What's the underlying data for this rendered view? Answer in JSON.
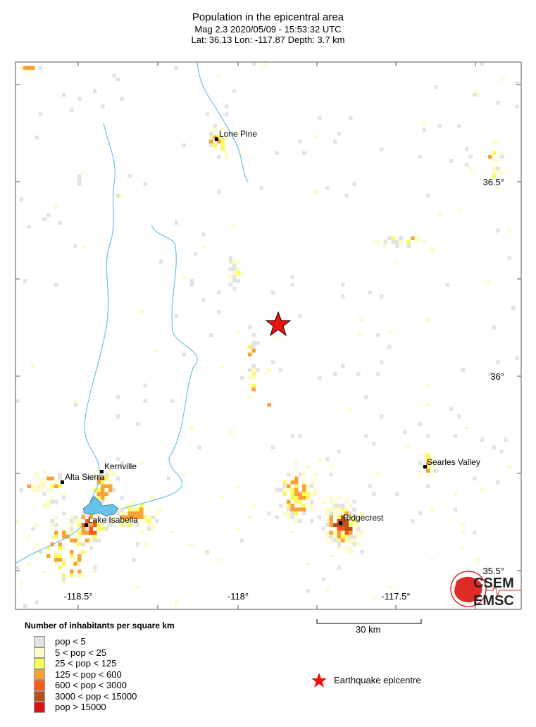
{
  "header": {
    "title": "Population in the epicentral area",
    "line2": "Mag 2.3  2020/05/09 - 15:53:32 UTC",
    "line3": "Lat: 36.13    Lon: -117.87      Depth:  3.7 km"
  },
  "event": {
    "magnitude": 2.3,
    "lat": 36.13,
    "lon": -117.87,
    "depth_km": 3.7
  },
  "axes": {
    "lat_labels": [
      "36.5°",
      "36°",
      "35.5°"
    ],
    "lon_labels": [
      "-118.5°",
      "-118°",
      "-117.5°"
    ]
  },
  "places": [
    {
      "name": "Lone Pine",
      "lat": 36.61,
      "lon": -118.07
    },
    {
      "name": "Kernville",
      "lat": 35.76,
      "lon": -118.43
    },
    {
      "name": "Alta Sierra",
      "lat": 35.73,
      "lon": -118.55
    },
    {
      "name": "Lake Isabella",
      "lat": 35.62,
      "lon": -118.47
    },
    {
      "name": "Ridgecrest",
      "lat": 35.62,
      "lon": -117.67
    },
    {
      "name": "Searles Valley",
      "lat": 35.77,
      "lon": -117.4
    }
  ],
  "scale_bar": {
    "label": "30 km"
  },
  "legend": {
    "title": "Number of inhabitants per square km",
    "classes": [
      {
        "label": "pop < 5",
        "color": "#e3e3e0"
      },
      {
        "label": "5 < pop < 25",
        "color": "#fdfbc8"
      },
      {
        "label": "25 < pop < 125",
        "color": "#fafa5a"
      },
      {
        "label": "125 < pop < 600",
        "color": "#f9a236"
      },
      {
        "label": "600 < pop < 3000",
        "color": "#f7591e"
      },
      {
        "label": "3000 < pop < 15000",
        "color": "#b8501e"
      },
      {
        "label": "pop > 15000",
        "color": "#d81212"
      }
    ],
    "epicentre_label": "Earthquake epicentre"
  },
  "colors": {
    "water": "#66c4ea",
    "epicentre": "#ee1111"
  },
  "logo": {
    "text_top": "CSEM",
    "text_bottom": "EMSC",
    "color": "#e02a26"
  }
}
